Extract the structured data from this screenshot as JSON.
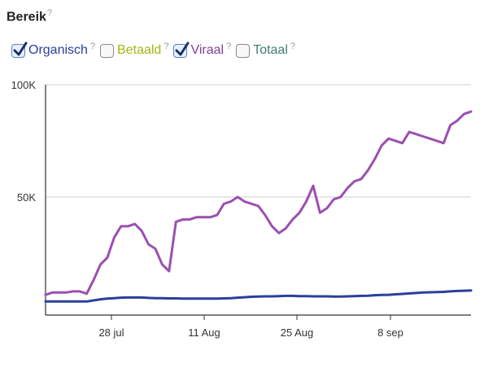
{
  "section": {
    "title": "Bereik",
    "help": "?"
  },
  "legend": [
    {
      "label": "Organisch",
      "checked": true,
      "color": "#2b3f9a"
    },
    {
      "label": "Betaald",
      "checked": false,
      "color": "#a3b515"
    },
    {
      "label": "Viraal",
      "checked": true,
      "color": "#7d3f98"
    },
    {
      "label": "Totaal",
      "checked": false,
      "color": "#3e7d73"
    }
  ],
  "chart_data": {
    "type": "line",
    "title": "",
    "xlabel": "",
    "ylabel": "",
    "x_ticks": [
      "28 jul",
      "11 Aug",
      "25 Aug",
      "8 sep"
    ],
    "y_ticks": [
      "100K",
      "50K"
    ],
    "ylim": [
      0,
      100000
    ],
    "grid": true,
    "series": [
      {
        "name": "Viraal",
        "color": "#9b4fb0",
        "values": [
          6500,
          7500,
          7500,
          7500,
          8000,
          8000,
          7000,
          13000,
          20000,
          23000,
          32000,
          37000,
          37000,
          38000,
          35000,
          29000,
          27000,
          20000,
          17000,
          39000,
          40000,
          40000,
          41000,
          41000,
          41000,
          42000,
          47000,
          48000,
          50000,
          48000,
          47000,
          46000,
          42000,
          37000,
          34000,
          36000,
          40000,
          43000,
          48000,
          55000,
          43000,
          45000,
          49000,
          50000,
          54000,
          57000,
          58000,
          62000,
          67000,
          73000,
          76000,
          75000,
          74000,
          79000,
          78000,
          77000,
          76000,
          75000,
          74000,
          82000,
          84000,
          87000,
          88000
        ]
      },
      {
        "name": "Organisch",
        "color": "#2b3f9a",
        "values": [
          3500,
          3500,
          3500,
          3500,
          3500,
          3500,
          3500,
          4000,
          4500,
          4800,
          5000,
          5200,
          5300,
          5300,
          5300,
          5100,
          5000,
          5000,
          4900,
          4900,
          4800,
          4800,
          4800,
          4800,
          4800,
          4800,
          4900,
          5000,
          5200,
          5400,
          5600,
          5700,
          5800,
          5800,
          5900,
          6000,
          6000,
          5900,
          5900,
          5800,
          5800,
          5800,
          5700,
          5700,
          5800,
          5900,
          6000,
          6100,
          6300,
          6400,
          6500,
          6700,
          6900,
          7100,
          7300,
          7500,
          7600,
          7700,
          7800,
          8000,
          8200,
          8300,
          8400
        ]
      }
    ]
  }
}
